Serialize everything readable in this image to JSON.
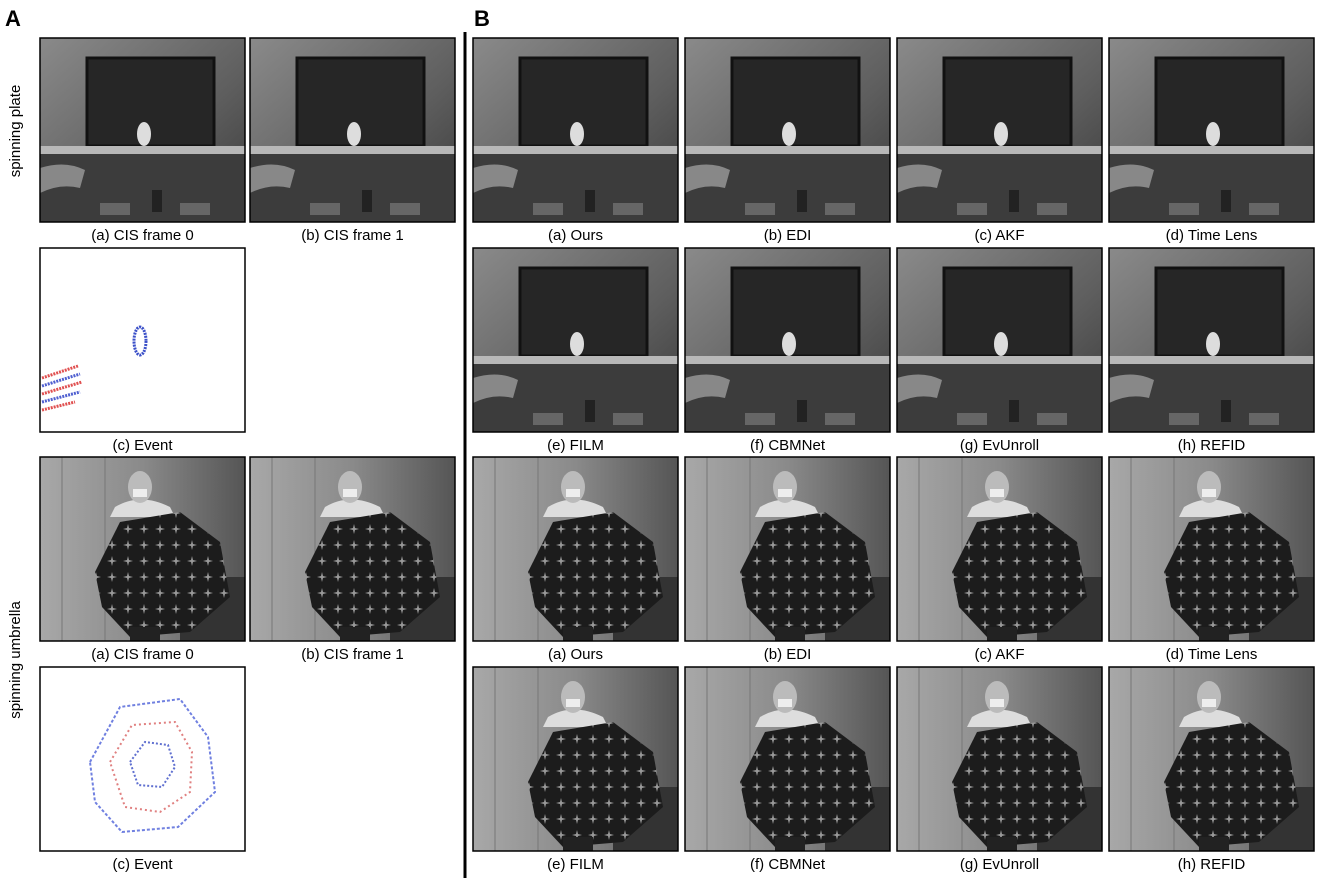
{
  "panel_a": {
    "label": "A",
    "row_labels": [
      "spinning plate",
      "spinning umbrella"
    ],
    "groups": [
      {
        "captions": [
          "(a) CIS frame 0",
          "(b) CIS frame 1",
          "(c) Event"
        ]
      },
      {
        "captions": [
          "(a) CIS frame 0",
          "(b) CIS frame 1",
          "(c) Event"
        ]
      }
    ]
  },
  "panel_b": {
    "label": "B",
    "groups": [
      {
        "captions": [
          "(a) Ours",
          "(b) EDI",
          "(c) AKF",
          "(d) Time Lens",
          "(e) FILM",
          "(f) CBMNet",
          "(g) EvUnroll",
          "(h) REFID"
        ]
      },
      {
        "captions": [
          "(a) Ours",
          "(b) EDI",
          "(c) AKF",
          "(d) Time Lens",
          "(e) FILM",
          "(f) CBMNet",
          "(g) EvUnroll",
          "(h) REFID"
        ]
      }
    ]
  }
}
